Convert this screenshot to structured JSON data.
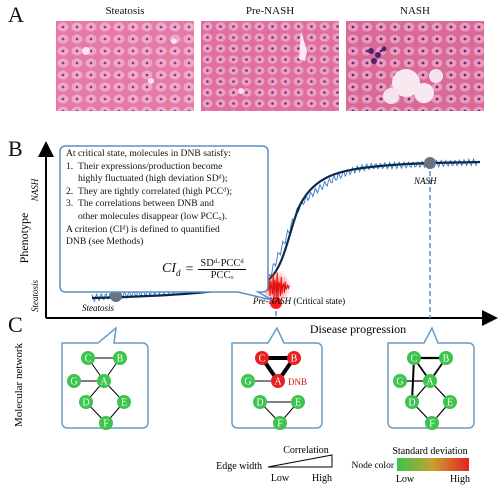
{
  "panel_a": {
    "letter": "A",
    "samples": [
      {
        "label": "Steatosis"
      },
      {
        "label": "Pre-NASH"
      },
      {
        "label": "NASH"
      }
    ]
  },
  "panel_b": {
    "letter": "B",
    "y_axis_label": "Phenotype",
    "y_top_state": "NASH",
    "y_bottom_state": "Steatosis",
    "x_axis_label": "Disease progression",
    "points": {
      "steatosis": "Steatosis",
      "pre_nash": "Pre-NASH",
      "pre_nash_suffix": " (Critical state)",
      "nash": "NASH"
    },
    "callout": {
      "intro": "At critical state, molecules in DNB satisfy:",
      "items": [
        {
          "num": "1.",
          "text": "Their expressions/production become",
          "cont": "highly fluctuated (high deviation SDᵈ);"
        },
        {
          "num": "2.",
          "text": "They are tightly correlated (high PCCᵈ);"
        },
        {
          "num": "3.",
          "text": "The correlations between DNB and",
          "cont": "other molecules disappear (low PCCₒ)."
        }
      ],
      "criterion_line1": "A criterion (CIᵈ) is defined to quantified",
      "criterion_line2": "DNB (see Methods)",
      "formula_lhs": "CI",
      "formula_lhs_sub": "d",
      "formula_num": "SDᵈ·PCCᵈ",
      "formula_den": "PCCₒ"
    }
  },
  "panel_c": {
    "letter": "C",
    "y_axis_label": "Molecular network",
    "node_labels": [
      "A",
      "B",
      "C",
      "D",
      "E",
      "F",
      "G"
    ],
    "dnb_label": "DNB",
    "colors": {
      "normal_node": "#3cc44c",
      "dnb_node": "#e82020",
      "bubble_border": "#6a9cc4",
      "dashed": "#5a8fc8",
      "curve": "#0a2a4a",
      "noise": "#3a78c0",
      "state_dot": "#6b7280"
    }
  },
  "legend": {
    "correlation_title": "Correlation",
    "edge_width_label": "Edge width",
    "corr_low": "Low",
    "corr_high": "High",
    "sd_title": "Standard deviation",
    "node_color_label": "Node color",
    "sd_low": "Low",
    "sd_high": "High"
  }
}
